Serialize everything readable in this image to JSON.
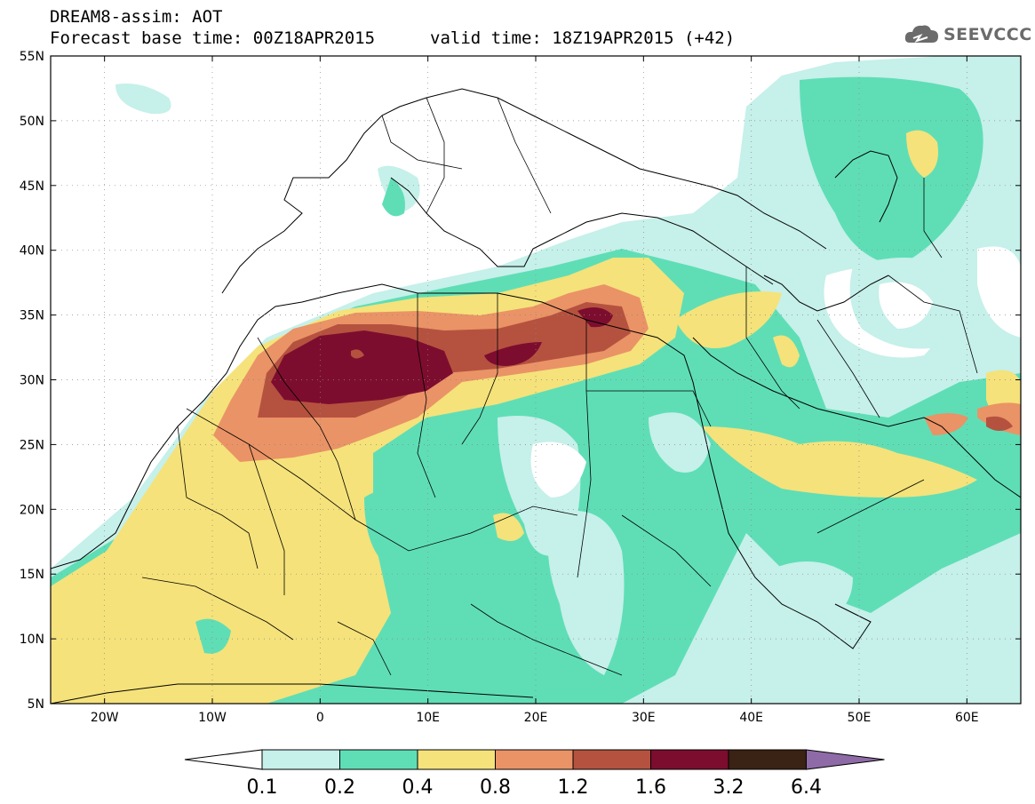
{
  "header": {
    "title": "DREAM8-assim: AOT",
    "forecast_base": "Forecast base time: 00Z18APR2015",
    "valid_time": "valid time: 18Z19APR2015 (+42)",
    "logo_text": "SEEVCCC"
  },
  "map": {
    "lon_labels": [
      "20W",
      "10W",
      "0",
      "10E",
      "20E",
      "30E",
      "40E",
      "50E",
      "60E"
    ],
    "lat_labels": [
      "55N",
      "50N",
      "45N",
      "40N",
      "35N",
      "30N",
      "25N",
      "20N",
      "15N",
      "10N",
      "5N"
    ],
    "lon_range": [
      -25,
      65
    ],
    "lat_range": [
      5,
      55
    ]
  },
  "colorbar": {
    "labels": [
      "0.1",
      "0.2",
      "0.4",
      "0.8",
      "1.2",
      "1.6",
      "3.2",
      "6.4"
    ],
    "colors": [
      "#ffffff",
      "#c6f0ea",
      "#5fdeb6",
      "#f5e27a",
      "#ea9366",
      "#b5523f",
      "#7d0d2e",
      "#3a2214",
      "#8e6ba6"
    ]
  }
}
